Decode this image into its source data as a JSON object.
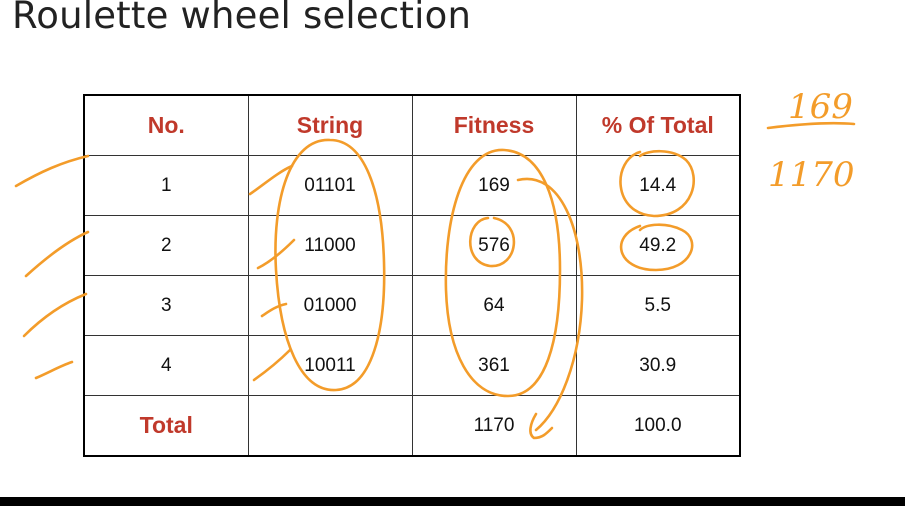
{
  "title": "Roulette wheel selection",
  "table": {
    "headers": [
      "No.",
      "String",
      "Fitness",
      "% Of Total"
    ],
    "rows": [
      {
        "no": "1",
        "string": "01101",
        "fitness": "169",
        "percent": "14.4"
      },
      {
        "no": "2",
        "string": "11000",
        "fitness": "576",
        "percent": "49.2"
      },
      {
        "no": "3",
        "string": "01000",
        "fitness": "64",
        "percent": "5.5"
      },
      {
        "no": "4",
        "string": "10011",
        "fitness": "361",
        "percent": "30.9"
      }
    ],
    "total": {
      "label": "Total",
      "string": "",
      "fitness": "1170",
      "percent": "100.0"
    }
  },
  "annotation": {
    "numerator": "169",
    "denominator": "1170",
    "ink_color": "#f39c2a"
  }
}
